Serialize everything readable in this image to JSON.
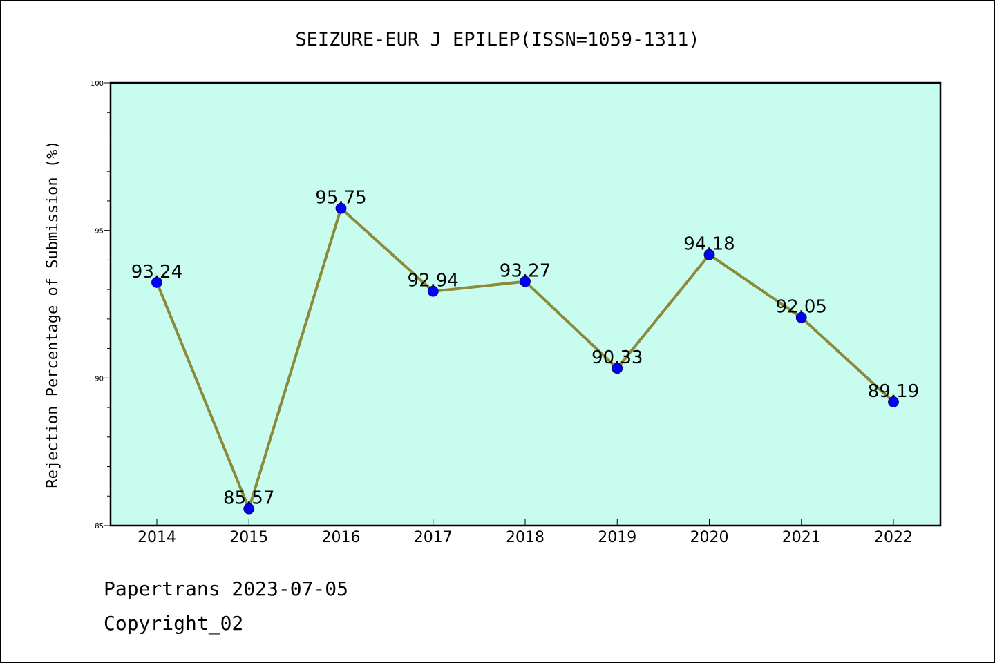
{
  "chart_data": {
    "type": "line",
    "title": "SEIZURE-EUR J EPILEP(ISSN=1059-1311)",
    "ylabel": "Rejection Percentage of Submission (%)",
    "xlabel": "",
    "categories": [
      "2014",
      "2015",
      "2016",
      "2017",
      "2018",
      "2019",
      "2020",
      "2021",
      "2022"
    ],
    "values": [
      93.24,
      85.57,
      95.75,
      92.94,
      93.27,
      90.33,
      94.18,
      92.05,
      89.19
    ],
    "labels": [
      "93.24",
      "85.57",
      "95.75",
      "92.94",
      "93.27",
      "90.33",
      "94.18",
      "92.05",
      "89.19"
    ],
    "ylim": [
      85,
      100
    ],
    "yticks": [
      "85",
      "90",
      "95",
      "100"
    ],
    "grid": false,
    "legend": "none",
    "colors": {
      "plot_background": "#c8fcee",
      "line": "#8b8a3a",
      "marker": "#0000ff"
    }
  },
  "footer": {
    "line1": "Papertrans 2023-07-05",
    "line2": "Copyright_02"
  }
}
